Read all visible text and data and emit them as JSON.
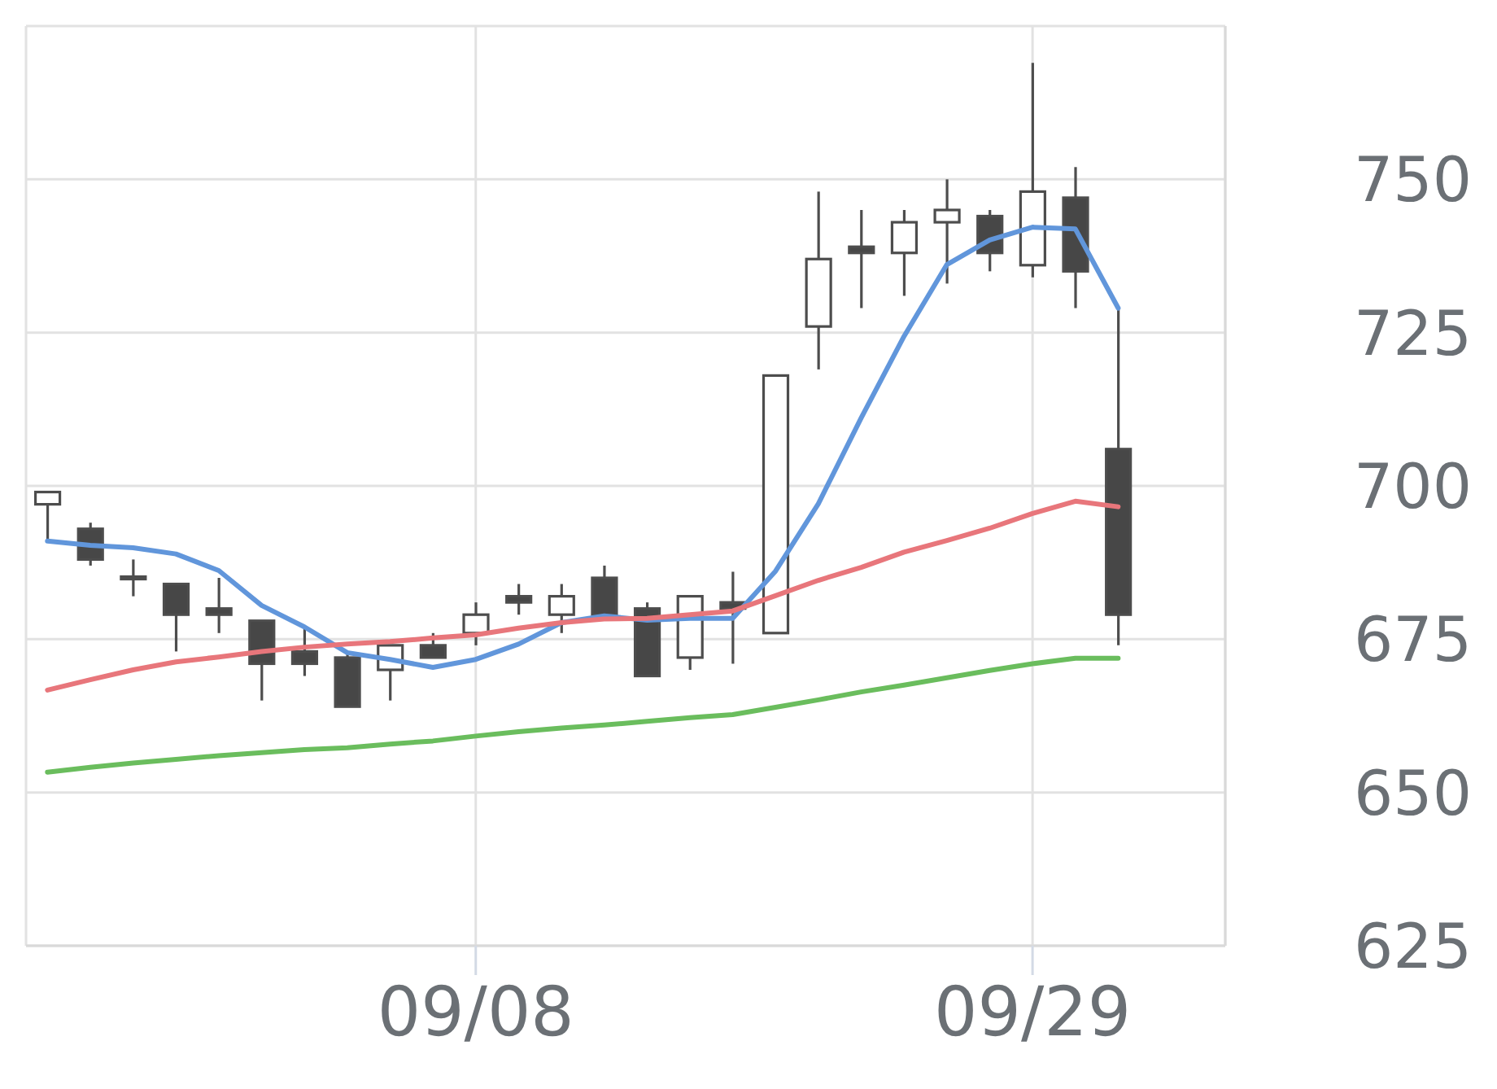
{
  "chart_data": {
    "type": "candlestick",
    "categories": [
      null,
      null,
      null,
      null,
      null,
      null,
      null,
      null,
      null,
      null,
      "09/08",
      null,
      null,
      null,
      null,
      null,
      null,
      null,
      null,
      null,
      null,
      null,
      null,
      "09/29",
      null,
      null
    ],
    "ohlc": [
      [
        697,
        699,
        691,
        699
      ],
      [
        693,
        694,
        687,
        688
      ],
      [
        685,
        688,
        682,
        685
      ],
      [
        684,
        684,
        673,
        679
      ],
      [
        680,
        685,
        676,
        679
      ],
      [
        678,
        678,
        665,
        671
      ],
      [
        673,
        677,
        669,
        671
      ],
      [
        672,
        673,
        664,
        664
      ],
      [
        670,
        674,
        665,
        674
      ],
      [
        674,
        676,
        672,
        672
      ],
      [
        676,
        681,
        674,
        679
      ],
      [
        682,
        684,
        679,
        681
      ],
      [
        679,
        684,
        676,
        682
      ],
      [
        685,
        687,
        679,
        679
      ],
      [
        680,
        681,
        669,
        669
      ],
      [
        672,
        682,
        670,
        682
      ],
      [
        681,
        686,
        671,
        680
      ],
      [
        676,
        718,
        676,
        718
      ],
      [
        726,
        748,
        719,
        737
      ],
      [
        739,
        745,
        729,
        738
      ],
      [
        738,
        745,
        731,
        743
      ],
      [
        743,
        750,
        733,
        745
      ],
      [
        744,
        745,
        735,
        738
      ],
      [
        736,
        769,
        734,
        748
      ],
      [
        747,
        752,
        729,
        735
      ],
      [
        706,
        729,
        674,
        679
      ]
    ],
    "series": [
      {
        "type": "line",
        "color": "#6196db",
        "values": [
          691.0,
          690.3,
          689.9,
          688.9,
          686.2,
          680.5,
          677.0,
          672.8,
          671.7,
          670.4,
          671.7,
          674.2,
          677.7,
          678.8,
          678.1,
          678.4,
          678.4,
          686.1,
          697.1,
          711.1,
          724.4,
          736.1,
          740.1,
          742.2,
          741.9,
          729.0
        ]
      },
      {
        "type": "line",
        "color": "#e8767b",
        "values": [
          666.7,
          668.4,
          670.0,
          671.3,
          672.1,
          673.0,
          673.7,
          674.2,
          674.6,
          675.2,
          675.7,
          676.8,
          677.7,
          678.3,
          678.4,
          679.0,
          679.6,
          682.1,
          684.6,
          686.7,
          689.2,
          691.1,
          693.1,
          695.5,
          697.5,
          696.6
        ]
      },
      {
        "type": "line",
        "color": "#6abd5d",
        "values": [
          653.3,
          654.1,
          654.8,
          655.4,
          656.0,
          656.5,
          657.0,
          657.3,
          657.9,
          658.4,
          659.2,
          659.9,
          660.5,
          661.0,
          661.6,
          662.2,
          662.7,
          663.9,
          665.1,
          666.4,
          667.5,
          668.7,
          669.9,
          671.0,
          671.9,
          671.9
        ]
      }
    ],
    "ylim": [
      625,
      775
    ],
    "yticks": [
      625,
      650,
      675,
      700,
      725,
      750
    ],
    "grid": true
  }
}
